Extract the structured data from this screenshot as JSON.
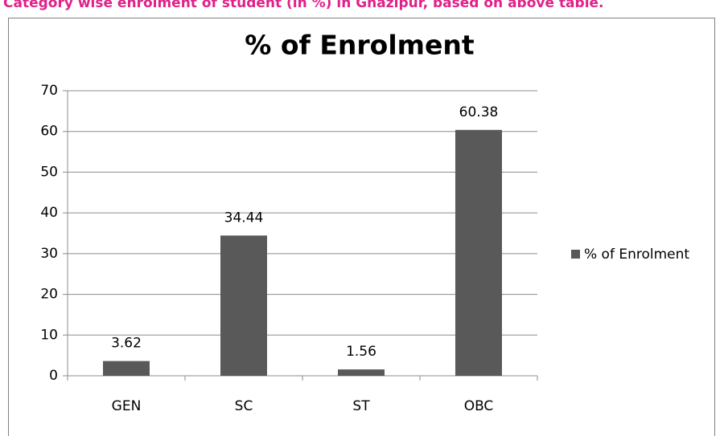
{
  "caption": "Category wise enrolment of student (in %) in Ghazipur, based on above table.",
  "chart_data": {
    "type": "bar",
    "title": "% of Enrolment",
    "categories": [
      "GEN",
      "SC",
      "ST",
      "OBC"
    ],
    "series": [
      {
        "name": "% of Enrolment",
        "color": "#595959",
        "values": [
          3.62,
          34.44,
          1.56,
          60.38
        ]
      }
    ],
    "ylim": [
      0,
      70
    ],
    "yticks": [
      0,
      10,
      20,
      30,
      40,
      50,
      60,
      70
    ],
    "grid": true,
    "legend": "right"
  }
}
